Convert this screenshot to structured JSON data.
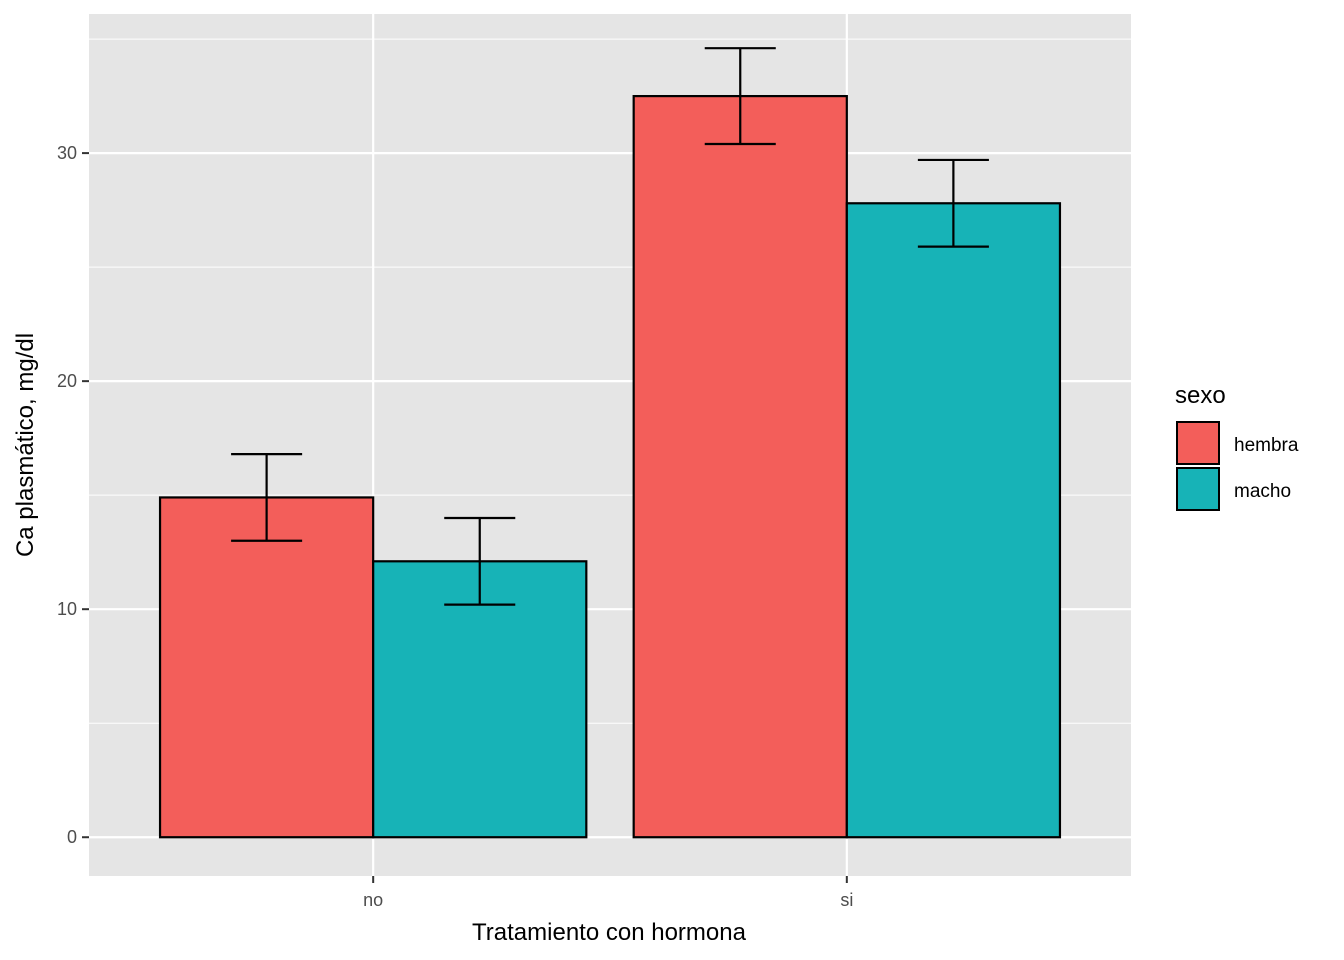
{
  "chart_data": {
    "type": "bar",
    "title": "",
    "xlabel": "Tratamiento con hormona",
    "ylabel": "Ca plasmático, mg/dl",
    "categories": [
      "no",
      "si"
    ],
    "ylim": [
      -1.7,
      36.1
    ],
    "y_ticks": [
      0,
      10,
      20,
      30
    ],
    "y_tick_labels": [
      "0",
      "10",
      "20",
      "30"
    ],
    "grid": true,
    "legend": {
      "title": "sexo",
      "position": "right"
    },
    "series": [
      {
        "name": "hembra",
        "color": "#F35E5A",
        "values": [
          14.9,
          32.5
        ],
        "error_low": [
          13.0,
          30.4
        ],
        "error_high": [
          16.8,
          34.6
        ]
      },
      {
        "name": "macho",
        "color": "#17B3B7",
        "values": [
          12.1,
          27.8
        ],
        "error_low": [
          10.2,
          25.9
        ],
        "error_high": [
          14.0,
          29.7
        ]
      }
    ],
    "colors": {
      "panel_bg": "#E5E5E5",
      "grid": "#FFFFFF",
      "bar_border": "#000000",
      "tick_text": "#4D4D4D"
    }
  }
}
